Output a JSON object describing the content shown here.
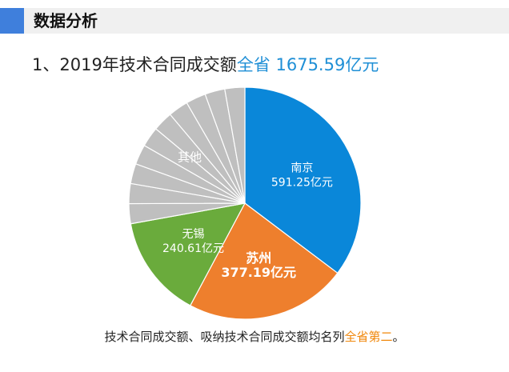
{
  "header": {
    "title": "数据分析"
  },
  "subtitle": {
    "prefix": "1、2019年技术合同成交额",
    "highlight": "全省 1675.59亿元"
  },
  "caption": {
    "text": "技术合同成交额、吸纳技术合同成交额均名列",
    "highlight": "全省第二",
    "suffix": "。"
  },
  "chart_data": {
    "type": "pie",
    "title": "",
    "unit": "亿元",
    "total": 1675.59,
    "slices": [
      {
        "name": "南京",
        "value": 591.25,
        "value_label": "591.25亿元",
        "color": "#0a87d9",
        "label_color": "#ffffff",
        "bold": false
      },
      {
        "name": "苏州",
        "value": 377.19,
        "value_label": "377.19亿元",
        "color": "#ee7f2d",
        "label_color": "#ffffff",
        "bold": true
      },
      {
        "name": "无锡",
        "value": 240.61,
        "value_label": "240.61亿元",
        "color": "#6aab3c",
        "label_color": "#ffffff",
        "bold": false
      },
      {
        "name": "其他",
        "value": 466.54,
        "value_label": "",
        "color": "#bfbfbf",
        "label_color": "#ffffff",
        "bold": false
      }
    ],
    "other_subslices": 10
  }
}
